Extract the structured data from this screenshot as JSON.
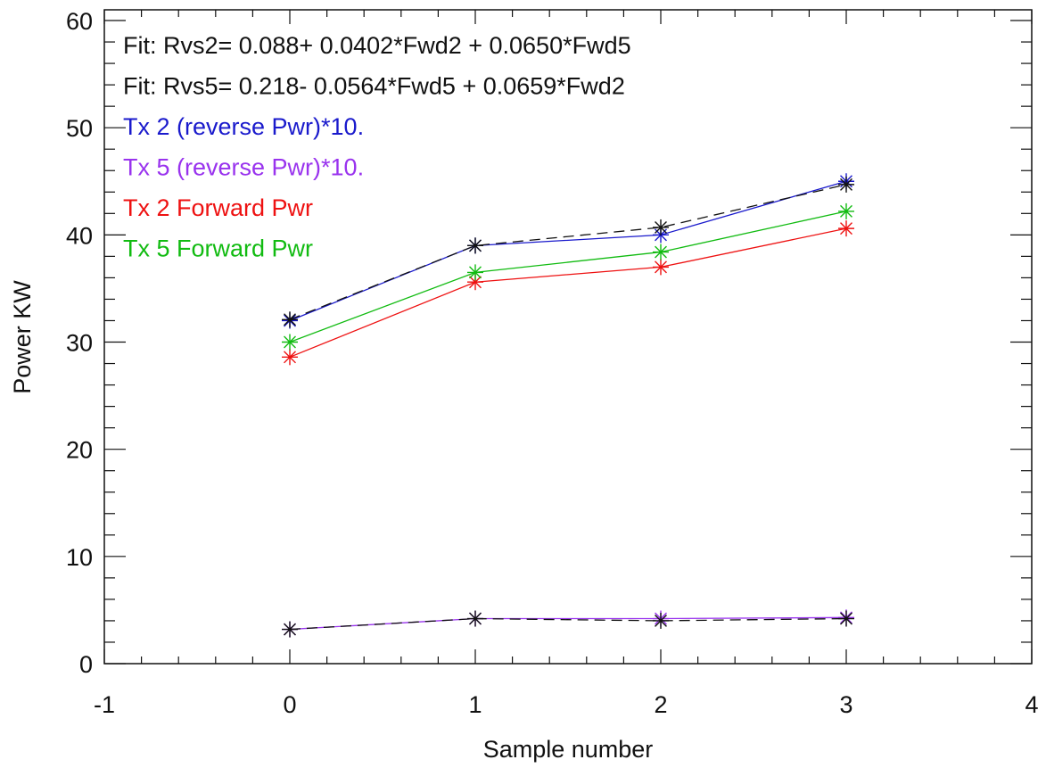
{
  "chart_data": {
    "type": "line",
    "title": "",
    "xlabel": "Sample number",
    "ylabel": "Power KW",
    "xlim": [
      -1,
      4
    ],
    "ylim": [
      0,
      61
    ],
    "x_ticks": [
      -1,
      0,
      1,
      2,
      3,
      4
    ],
    "y_ticks": [
      0,
      10,
      20,
      30,
      40,
      50,
      60
    ],
    "grid": false,
    "marker": "asterisk",
    "annotations": [
      {
        "text": "Fit: Rvs2= 0.088+  0.0402*Fwd2  + 0.0650*Fwd5",
        "color": "#111111"
      },
      {
        "text": "Fit: Rvs5= 0.218-  0.0564*Fwd5  + 0.0659*Fwd2",
        "color": "#111111"
      },
      {
        "text": "Tx 2 (reverse Pwr)*10.",
        "color": "#1a1acc"
      },
      {
        "text": "Tx 5 (reverse Pwr)*10.",
        "color": "#9933ee"
      },
      {
        "text": "Tx 2 Forward Pwr",
        "color": "#ee1111"
      },
      {
        "text": "Tx 5 Forward Pwr",
        "color": "#11bb11"
      }
    ],
    "x": [
      0,
      1,
      2,
      3
    ],
    "series": [
      {
        "name": "Tx 2 Forward Pwr",
        "values": [
          28.6,
          35.6,
          37.0,
          40.6
        ],
        "color": "#ee1111",
        "dash": false
      },
      {
        "name": "Tx 5 Forward Pwr",
        "values": [
          30.0,
          36.5,
          38.4,
          42.2
        ],
        "color": "#11bb11",
        "dash": false
      },
      {
        "name": "Tx 2 (reverse Pwr)*10.",
        "values": [
          32.0,
          39.0,
          40.0,
          45.0
        ],
        "color": "#1a1acc",
        "dash": false
      },
      {
        "name": "",
        "values": [
          32.1,
          39.0,
          40.7,
          44.7
        ],
        "color": "#111111",
        "dash": true
      },
      {
        "name": "Tx 5 (reverse Pwr)*10.",
        "values": [
          3.2,
          4.2,
          4.2,
          4.3
        ],
        "color": "#9933ee",
        "dash": false
      },
      {
        "name": "",
        "values": [
          3.2,
          4.2,
          4.0,
          4.2
        ],
        "color": "#111111",
        "dash": true
      }
    ]
  }
}
